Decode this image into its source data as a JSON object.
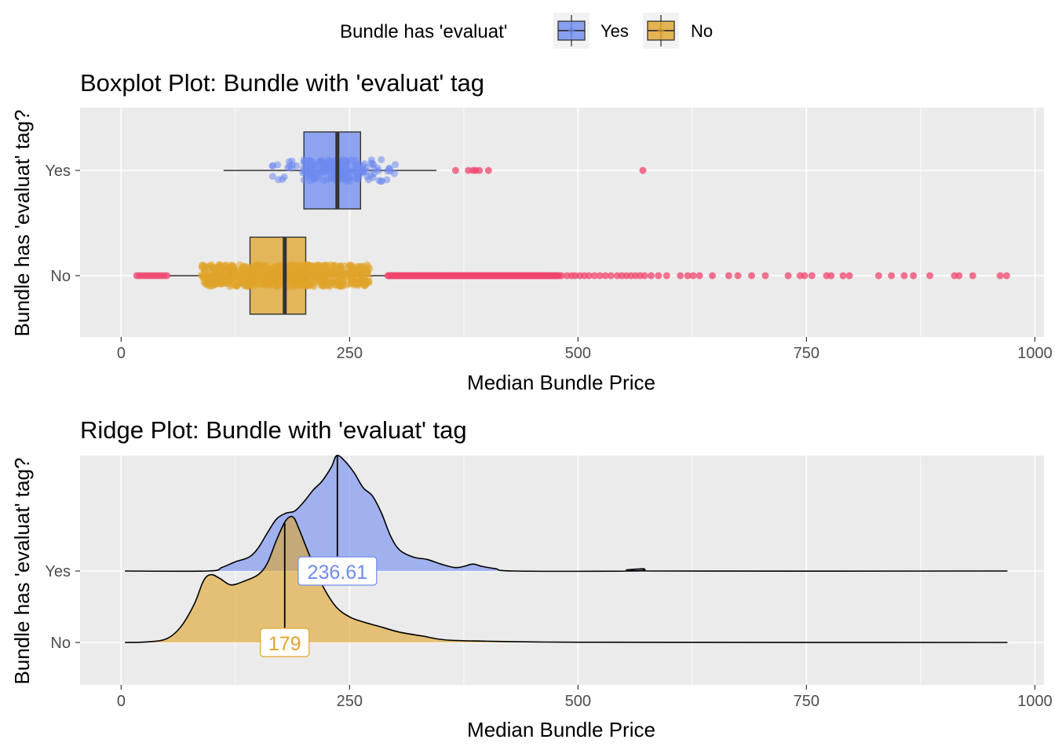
{
  "legend": {
    "title": "Bundle has 'evaluat'",
    "items": [
      {
        "label": "Yes",
        "color": "#6E8BF0"
      },
      {
        "label": "No",
        "color": "#E0A42A"
      }
    ]
  },
  "colors": {
    "yes_fill": "#6E8BF0",
    "no_fill": "#E0A42A",
    "outlier": "#F0466E",
    "yes_label_text": "#6E8BF0",
    "no_label_text": "#E0A42A"
  },
  "chart_data": [
    {
      "type": "boxplot",
      "title": "Boxplot Plot: Bundle with 'evaluat' tag",
      "xlabel": "Median Bundle Price",
      "ylabel": "Bundle has 'evaluat' tag?",
      "xlim": [
        -45,
        1010
      ],
      "xticks": [
        0,
        250,
        500,
        750,
        1000
      ],
      "xtick_labels": [
        "0",
        "250",
        "500",
        "750",
        "1000"
      ],
      "categories": [
        "Yes",
        "No"
      ],
      "series": [
        {
          "name": "Yes",
          "whisker_low": 112,
          "q1": 200,
          "median": 236.61,
          "q3": 262,
          "whisker_high": 345,
          "jitter_range": [
            143,
            325
          ],
          "jitter_count": 170,
          "outliers": [
            366,
            380,
            385,
            388,
            392,
            402,
            571
          ]
        },
        {
          "name": "No",
          "whisker_low": 52,
          "q1": 141,
          "median": 179,
          "q3": 202,
          "whisker_high": 290,
          "jitter_range": [
            88,
            272
          ],
          "jitter_count": 700,
          "outliers_low": [
            17,
            20,
            23,
            26,
            29,
            32,
            35,
            38,
            41,
            44,
            47,
            50
          ],
          "outliers_dense_range": [
            292,
            480
          ],
          "outliers": [
            482,
            488,
            493,
            497,
            502,
            507,
            512,
            518,
            524,
            530,
            536,
            543,
            548,
            553,
            558,
            563,
            568,
            573,
            580,
            588,
            597,
            612,
            620,
            626,
            633,
            647,
            665,
            675,
            690,
            705,
            730,
            743,
            748,
            756,
            772,
            777,
            790,
            797,
            829,
            843,
            857,
            867,
            885,
            912,
            917,
            932,
            962,
            969
          ]
        }
      ]
    },
    {
      "type": "ridge",
      "title": "Ridge Plot: Bundle with 'evaluat' tag",
      "xlabel": "Median Bundle Price",
      "ylabel": "Bundle has 'evaluat' tag?",
      "xlim": [
        -45,
        1010
      ],
      "xticks": [
        0,
        250,
        500,
        750,
        1000
      ],
      "xtick_labels": [
        "0",
        "250",
        "500",
        "750",
        "1000"
      ],
      "categories": [
        "Yes",
        "No"
      ],
      "x_range": [
        4,
        970
      ],
      "series": [
        {
          "name": "Yes",
          "median": 236.61,
          "median_label": "236.61",
          "density": [
            [
              4,
              0
            ],
            [
              95,
              0
            ],
            [
              110,
              0.03
            ],
            [
              125,
              0.08
            ],
            [
              140,
              0.12
            ],
            [
              150,
              0.2
            ],
            [
              160,
              0.33
            ],
            [
              170,
              0.45
            ],
            [
              180,
              0.5
            ],
            [
              190,
              0.52
            ],
            [
              200,
              0.6
            ],
            [
              210,
              0.7
            ],
            [
              220,
              0.78
            ],
            [
              230,
              0.9
            ],
            [
              236,
              1.0
            ],
            [
              245,
              0.95
            ],
            [
              255,
              0.85
            ],
            [
              265,
              0.72
            ],
            [
              275,
              0.65
            ],
            [
              285,
              0.5
            ],
            [
              295,
              0.3
            ],
            [
              305,
              0.18
            ],
            [
              320,
              0.12
            ],
            [
              335,
              0.1
            ],
            [
              350,
              0.06
            ],
            [
              365,
              0.03
            ],
            [
              375,
              0.04
            ],
            [
              385,
              0.06
            ],
            [
              395,
              0.04
            ],
            [
              410,
              0.02
            ],
            [
              430,
              0
            ],
            [
              560,
              0
            ],
            [
              572,
              0.02
            ],
            [
              585,
              0
            ],
            [
              970,
              0
            ]
          ]
        },
        {
          "name": "No",
          "median": 179,
          "median_label": "179",
          "density": [
            [
              4,
              0
            ],
            [
              30,
              0.005
            ],
            [
              50,
              0.03
            ],
            [
              65,
              0.12
            ],
            [
              80,
              0.3
            ],
            [
              90,
              0.48
            ],
            [
              98,
              0.53
            ],
            [
              108,
              0.5
            ],
            [
              120,
              0.45
            ],
            [
              135,
              0.48
            ],
            [
              150,
              0.53
            ],
            [
              160,
              0.62
            ],
            [
              170,
              0.8
            ],
            [
              180,
              0.95
            ],
            [
              188,
              0.98
            ],
            [
              195,
              0.88
            ],
            [
              205,
              0.7
            ],
            [
              220,
              0.45
            ],
            [
              235,
              0.28
            ],
            [
              250,
              0.2
            ],
            [
              265,
              0.16
            ],
            [
              285,
              0.12
            ],
            [
              305,
              0.08
            ],
            [
              330,
              0.05
            ],
            [
              355,
              0.02
            ],
            [
              400,
              0.01
            ],
            [
              450,
              0.004
            ],
            [
              500,
              0.002
            ],
            [
              600,
              0.001
            ],
            [
              970,
              0
            ]
          ]
        }
      ]
    }
  ]
}
